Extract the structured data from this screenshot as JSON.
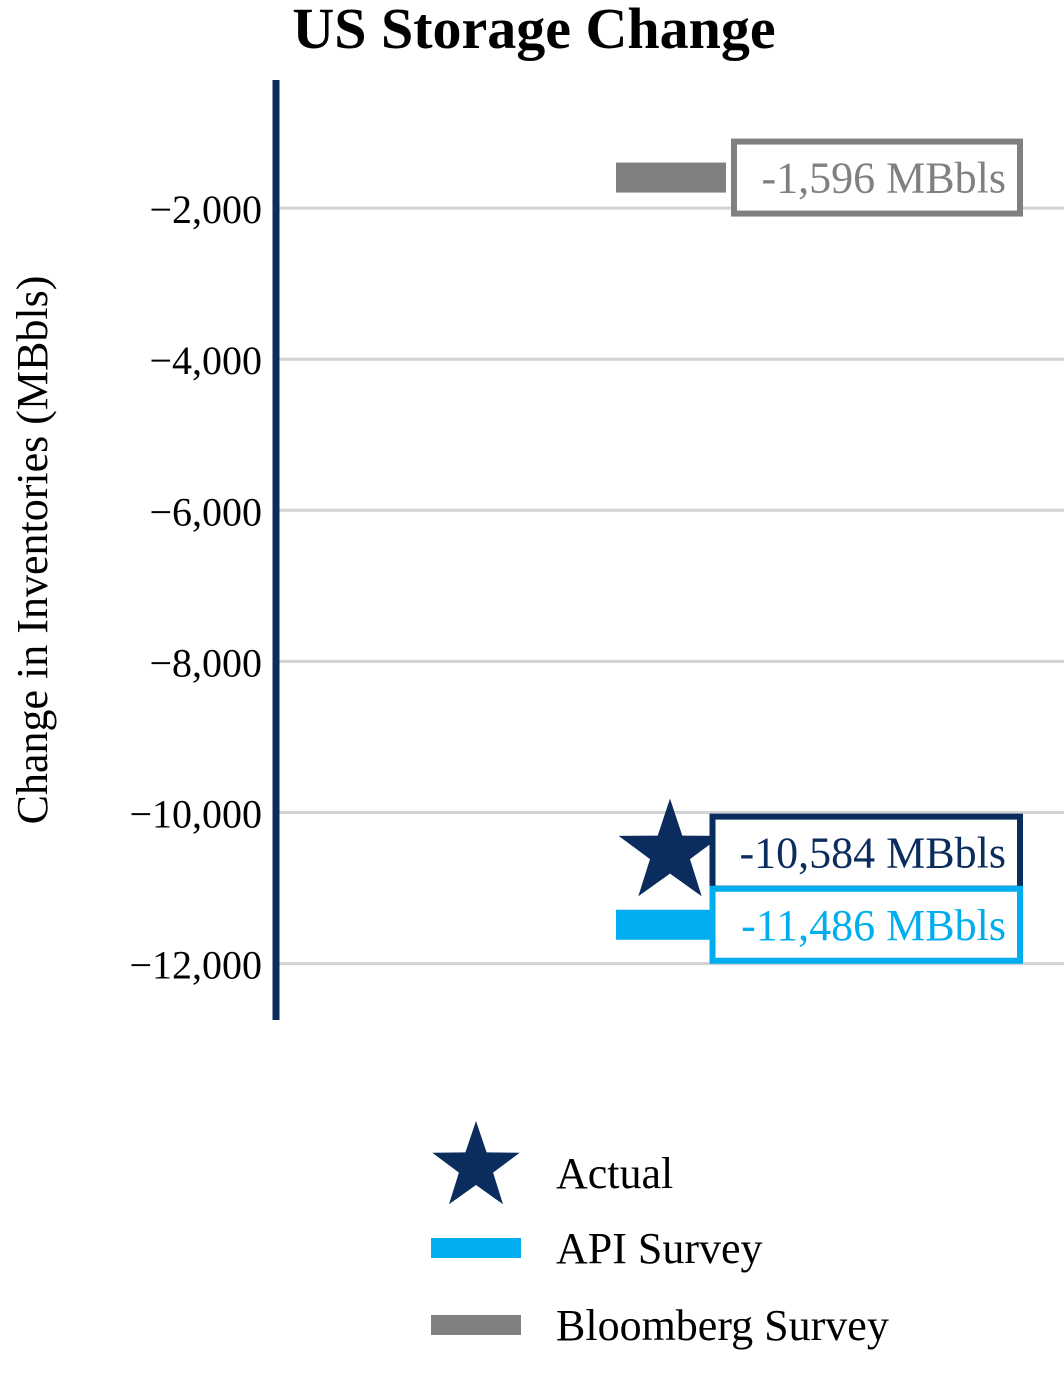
{
  "chart_data": {
    "type": "scatter",
    "title": "US Storage Change",
    "ylabel": "Change in Inventories (MBbls)",
    "xlabel": "",
    "ylim": [
      -12750,
      -500
    ],
    "yticks": [
      -2000,
      -4000,
      -6000,
      -8000,
      -10000,
      -12000
    ],
    "ytick_labels": [
      "−2,000",
      "−4,000",
      "−6,000",
      "−8,000",
      "−10,000",
      "−12,000"
    ],
    "grid": true,
    "legend_placement": "bottom",
    "series": [
      {
        "name": "Actual",
        "marker": "star",
        "value": -10584,
        "label": "-10,584 MBbls",
        "color": "#0a2d5e"
      },
      {
        "name": "API Survey",
        "marker": "bar",
        "value": -11486,
        "label": "-11,486 MBbls",
        "color": "#00aeef"
      },
      {
        "name": "Bloomberg Survey",
        "marker": "bar",
        "value": -1596,
        "label": "-1,596 MBbls",
        "color": "#808080"
      }
    ]
  },
  "colors": {
    "axis": "#0a2d5e",
    "grid": "#d3d3d3",
    "text": "#000000"
  }
}
